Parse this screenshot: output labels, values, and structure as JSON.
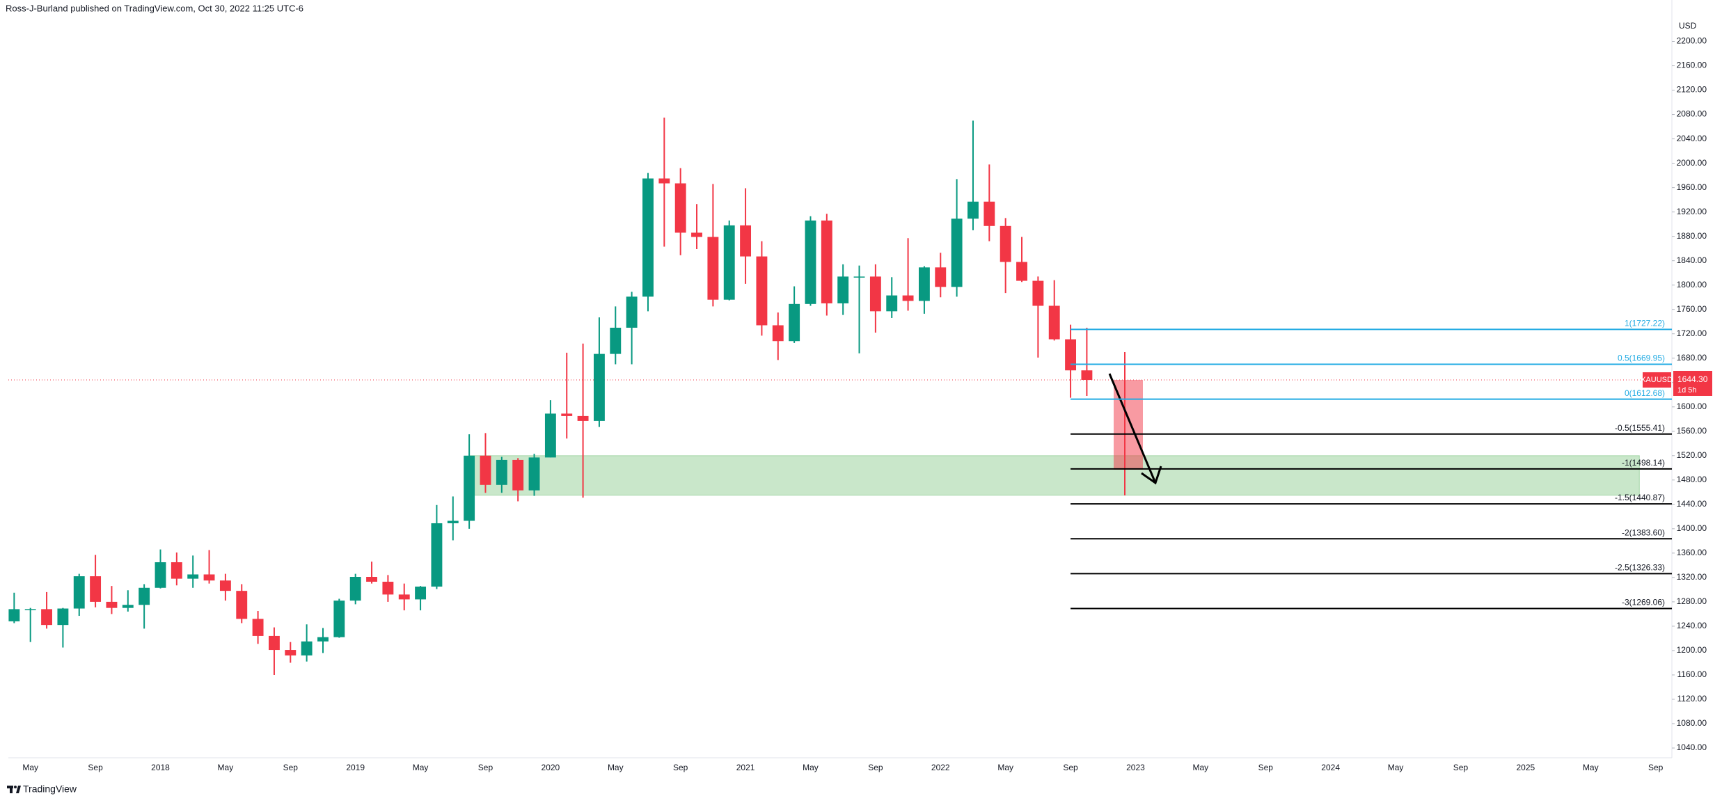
{
  "header": "Ross-J-Burland published on TradingView.com, Oct 30, 2022 11:25 UTC-6",
  "footer": "TradingView",
  "chart_data": {
    "type": "candlestick",
    "currency": "USD",
    "up_color": "#089981",
    "down_color": "#f23645",
    "grid": false,
    "x": [
      "2017-04",
      "2017-05",
      "2017-06",
      "2017-07",
      "2017-08",
      "2017-09",
      "2017-10",
      "2017-11",
      "2017-12",
      "2018-01",
      "2018-02",
      "2018-03",
      "2018-04",
      "2018-05",
      "2018-06",
      "2018-07",
      "2018-08",
      "2018-09",
      "2018-10",
      "2018-11",
      "2018-12",
      "2019-01",
      "2019-02",
      "2019-03",
      "2019-04",
      "2019-05",
      "2019-06",
      "2019-07",
      "2019-08",
      "2019-09",
      "2019-10",
      "2019-11",
      "2019-12",
      "2020-01",
      "2020-02",
      "2020-03",
      "2020-04",
      "2020-05",
      "2020-06",
      "2020-07",
      "2020-08",
      "2020-09",
      "2020-10",
      "2020-11",
      "2020-12",
      "2021-01",
      "2021-02",
      "2021-03",
      "2021-04",
      "2021-05",
      "2021-06",
      "2021-07",
      "2021-08",
      "2021-09",
      "2021-10",
      "2021-11",
      "2021-12",
      "2022-01",
      "2022-02",
      "2022-03",
      "2022-04",
      "2022-05",
      "2022-06",
      "2022-07",
      "2022-08",
      "2022-09",
      "2022-10"
    ],
    "open": [
      1248,
      1268,
      1268,
      1242,
      1269,
      1322,
      1280,
      1270,
      1275,
      1303,
      1345,
      1318,
      1325,
      1315,
      1298,
      1252,
      1224,
      1201,
      1192,
      1215,
      1222,
      1282,
      1321,
      1313,
      1292,
      1284,
      1305,
      1409,
      1413,
      1520,
      1472,
      1513,
      1463,
      1517,
      1589,
      1585,
      1577,
      1687,
      1730,
      1781,
      1975,
      1967,
      1886,
      1879,
      1776,
      1898,
      1847,
      1734,
      1708,
      1769,
      1906,
      1770,
      1814,
      1814,
      1757,
      1783,
      1774,
      1829,
      1797,
      1909,
      1937,
      1897,
      1838,
      1807,
      1766,
      1711,
      1660
    ],
    "high": [
      1295,
      1270,
      1296,
      1270,
      1326,
      1357,
      1306,
      1299,
      1309,
      1366,
      1361,
      1356,
      1365,
      1326,
      1309,
      1265,
      1238,
      1214,
      1243,
      1237,
      1285,
      1326,
      1346,
      1324,
      1310,
      1306,
      1439,
      1453,
      1555,
      1557,
      1518,
      1516,
      1523,
      1611,
      1689,
      1704,
      1747,
      1765,
      1789,
      1984,
      2075,
      1992,
      1933,
      1966,
      1906,
      1959,
      1872,
      1755,
      1798,
      1913,
      1917,
      1834,
      1832,
      1834,
      1813,
      1877,
      1831,
      1853,
      1974,
      2070,
      1998,
      1910,
      1879,
      1814,
      1808,
      1735,
      1730
    ],
    "low": [
      1245,
      1214,
      1236,
      1205,
      1257,
      1271,
      1260,
      1264,
      1236,
      1302,
      1307,
      1303,
      1310,
      1282,
      1245,
      1211,
      1160,
      1180,
      1182,
      1196,
      1221,
      1276,
      1310,
      1280,
      1266,
      1266,
      1301,
      1381,
      1400,
      1459,
      1459,
      1445,
      1454,
      1517,
      1548,
      1451,
      1567,
      1670,
      1670,
      1757,
      1863,
      1849,
      1859,
      1765,
      1775,
      1802,
      1717,
      1677,
      1705,
      1766,
      1750,
      1751,
      1688,
      1722,
      1746,
      1758,
      1753,
      1780,
      1781,
      1890,
      1872,
      1787,
      1805,
      1681,
      1709,
      1615,
      1618
    ],
    "close": [
      1268,
      1268,
      1242,
      1269,
      1322,
      1280,
      1270,
      1275,
      1303,
      1345,
      1318,
      1325,
      1315,
      1298,
      1252,
      1224,
      1201,
      1192,
      1215,
      1222,
      1282,
      1321,
      1313,
      1292,
      1284,
      1305,
      1409,
      1413,
      1520,
      1472,
      1513,
      1463,
      1517,
      1589,
      1585,
      1577,
      1687,
      1730,
      1781,
      1975,
      1967,
      1886,
      1879,
      1776,
      1898,
      1847,
      1734,
      1708,
      1769,
      1906,
      1770,
      1814,
      1814,
      1757,
      1783,
      1774,
      1829,
      1797,
      1909,
      1937,
      1897,
      1838,
      1807,
      1766,
      1711,
      1660,
      1644.3
    ],
    "xlim": [
      "2017-03",
      "2025-10"
    ],
    "xticks": [
      {
        "value": "2017-05",
        "label": "May"
      },
      {
        "value": "2017-09",
        "label": "Sep"
      },
      {
        "value": "2018-01",
        "label": "2018"
      },
      {
        "value": "2018-05",
        "label": "May"
      },
      {
        "value": "2018-09",
        "label": "Sep"
      },
      {
        "value": "2019-01",
        "label": "2019"
      },
      {
        "value": "2019-05",
        "label": "May"
      },
      {
        "value": "2019-09",
        "label": "Sep"
      },
      {
        "value": "2020-01",
        "label": "2020"
      },
      {
        "value": "2020-05",
        "label": "May"
      },
      {
        "value": "2020-09",
        "label": "Sep"
      },
      {
        "value": "2021-01",
        "label": "2021"
      },
      {
        "value": "2021-05",
        "label": "May"
      },
      {
        "value": "2021-09",
        "label": "Sep"
      },
      {
        "value": "2022-01",
        "label": "2022"
      },
      {
        "value": "2022-05",
        "label": "May"
      },
      {
        "value": "2022-09",
        "label": "Sep"
      },
      {
        "value": "2023-01",
        "label": "2023"
      },
      {
        "value": "2023-05",
        "label": "May"
      },
      {
        "value": "2023-09",
        "label": "Sep"
      },
      {
        "value": "2024-01",
        "label": "2024"
      },
      {
        "value": "2024-05",
        "label": "May"
      },
      {
        "value": "2024-09",
        "label": "Sep"
      },
      {
        "value": "2025-01",
        "label": "2025"
      },
      {
        "value": "2025-05",
        "label": "May"
      },
      {
        "value": "2025-09",
        "label": "Sep"
      }
    ],
    "ylim": [
      1024,
      2268
    ],
    "yticks": [
      {
        "value": 2200,
        "label": "2200.00"
      },
      {
        "value": 2160,
        "label": "2160.00"
      },
      {
        "value": 2120,
        "label": "2120.00"
      },
      {
        "value": 2080,
        "label": "2080.00"
      },
      {
        "value": 2040,
        "label": "2040.00"
      },
      {
        "value": 2000,
        "label": "2000.00"
      },
      {
        "value": 1960,
        "label": "1960.00"
      },
      {
        "value": 1920,
        "label": "1920.00"
      },
      {
        "value": 1880,
        "label": "1880.00"
      },
      {
        "value": 1840,
        "label": "1840.00"
      },
      {
        "value": 1800,
        "label": "1800.00"
      },
      {
        "value": 1760,
        "label": "1760.00"
      },
      {
        "value": 1720,
        "label": "1720.00"
      },
      {
        "value": 1680,
        "label": "1680.00"
      },
      {
        "value": 1640,
        "label": "1640.00"
      },
      {
        "value": 1600,
        "label": "1600.00"
      },
      {
        "value": 1560,
        "label": "1560.00"
      },
      {
        "value": 1520,
        "label": "1520.00"
      },
      {
        "value": 1480,
        "label": "1480.00"
      },
      {
        "value": 1440,
        "label": "1440.00"
      },
      {
        "value": 1400,
        "label": "1400.00"
      },
      {
        "value": 1360,
        "label": "1360.00"
      },
      {
        "value": 1320,
        "label": "1320.00"
      },
      {
        "value": 1280,
        "label": "1280.00"
      },
      {
        "value": 1240,
        "label": "1240.00"
      },
      {
        "value": 1200,
        "label": "1200.00"
      },
      {
        "value": 1160,
        "label": "1160.00"
      },
      {
        "value": 1120,
        "label": "1120.00"
      },
      {
        "value": 1080,
        "label": "1080.00"
      },
      {
        "value": 1040,
        "label": "1040.00"
      }
    ],
    "last_price": {
      "symbol": "XAUUSD",
      "value": 1644.3,
      "label": "1644.30",
      "countdown": "1d 5h",
      "color": "#f23645"
    },
    "zone": {
      "from": 1455,
      "to": 1520,
      "x_from": "2019-08",
      "x_to": "2025-08",
      "color": "#4caf50"
    },
    "fib_start": "2022-09",
    "fib_levels": [
      {
        "value": 1727.22,
        "label": "1(1727.22)",
        "color": "#22abe3"
      },
      {
        "value": 1669.95,
        "label": "0.5(1669.95)",
        "color": "#22abe3"
      },
      {
        "value": 1612.68,
        "label": "0(1612.68)",
        "color": "#22abe3"
      },
      {
        "value": 1555.41,
        "label": "-0.5(1555.41)",
        "color": "#000000"
      },
      {
        "value": 1498.14,
        "label": "-1(1498.14)",
        "color": "#000000"
      },
      {
        "value": 1440.87,
        "label": "-1.5(1440.87)",
        "color": "#000000"
      },
      {
        "value": 1383.6,
        "label": "-2(1383.60)",
        "color": "#000000"
      },
      {
        "value": 1326.33,
        "label": "-2.5(1326.33)",
        "color": "#000000"
      },
      {
        "value": 1269.06,
        "label": "-3(1269.06)",
        "color": "#000000"
      }
    ]
  }
}
